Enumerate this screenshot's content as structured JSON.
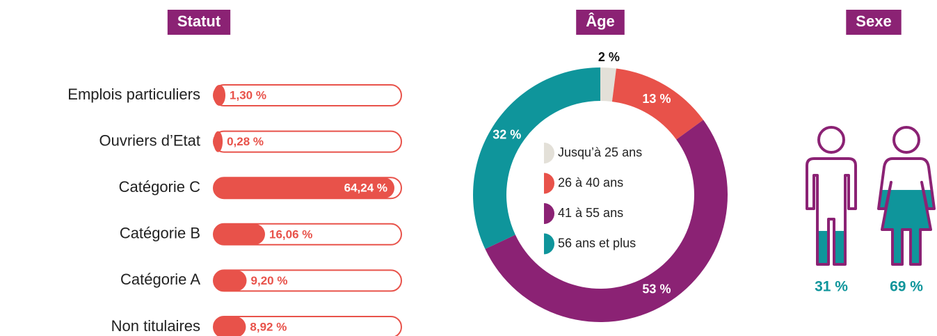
{
  "chart_data": [
    {
      "type": "bar",
      "title": "Statut",
      "categories": [
        "Emplois particuliers",
        "Ouvriers d’Etat",
        "Catégorie C",
        "Catégorie B",
        "Catégorie A",
        "Non titulaires"
      ],
      "values": [
        1.3,
        0.28,
        64.24,
        16.06,
        9.2,
        8.92
      ],
      "value_labels": [
        "1,30 %",
        "0,28 %",
        "64,24 %",
        "16,06 %",
        "9,20 %",
        "8,92 %"
      ],
      "color": "#e8524a"
    },
    {
      "type": "donut",
      "title": "Âge",
      "categories": [
        "Jusqu’à 25 ans",
        "26 à 40 ans",
        "41 à 55 ans",
        "56 ans et plus"
      ],
      "values": [
        2,
        13,
        53,
        32
      ],
      "value_labels": [
        "2 %",
        "13 %",
        "53 %",
        "32 %"
      ],
      "colors": [
        "#e3e0d8",
        "#e8524a",
        "#8b2274",
        "#0f959b"
      ]
    },
    {
      "type": "pictogram",
      "title": "Sexe",
      "values": [
        31,
        69
      ],
      "value_labels": [
        "31 %",
        "69 %"
      ],
      "color": "#0f959b",
      "outline": "#8b2274"
    }
  ]
}
